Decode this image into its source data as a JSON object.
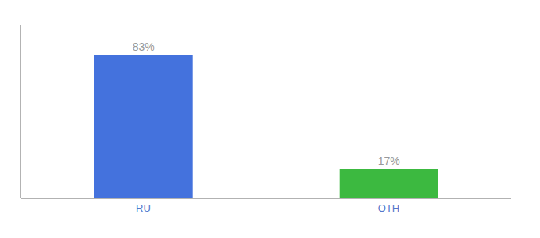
{
  "chart_data": {
    "type": "bar",
    "categories": [
      "RU",
      "OTH"
    ],
    "values": [
      83,
      17
    ],
    "value_labels": [
      "83%",
      "17%"
    ],
    "colors": [
      "#4472dd",
      "#3cb940"
    ],
    "ylim": [
      0,
      100
    ],
    "data_labels": true,
    "tick_labels": "x",
    "grid": false
  }
}
